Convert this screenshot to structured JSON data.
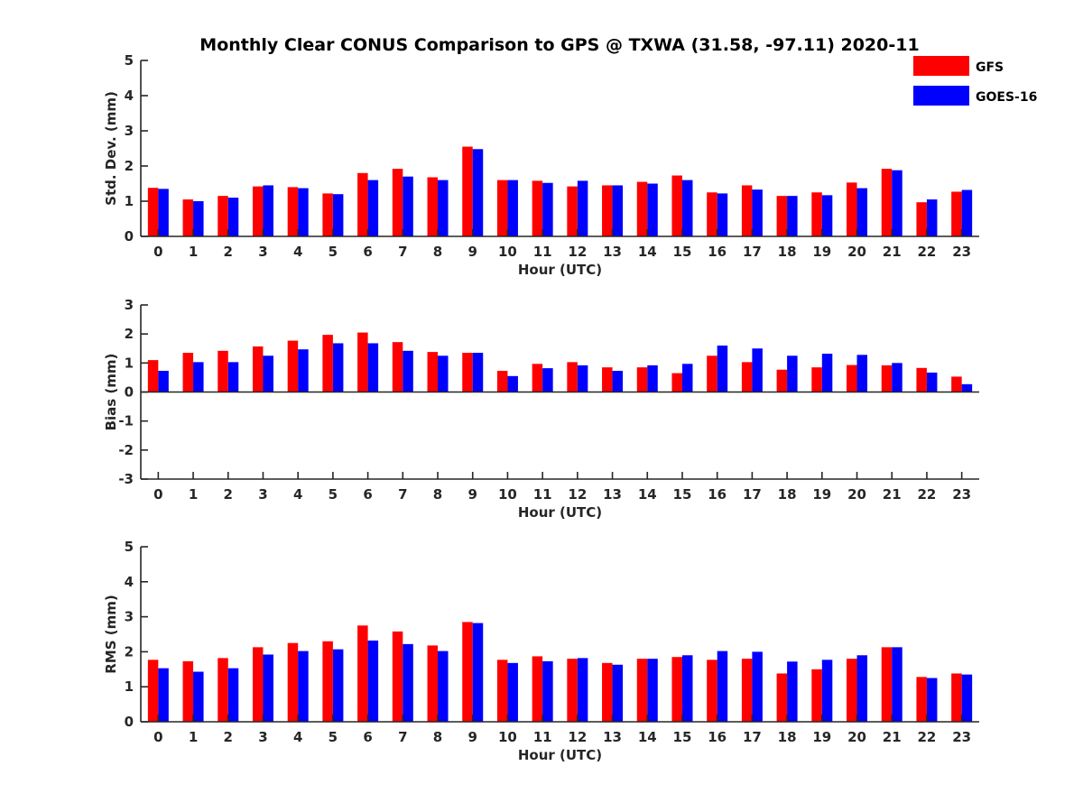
{
  "chart_data": {
    "type": "bar",
    "title": "Monthly Clear CONUS Comparison to GPS @ TXWA (31.58, -97.11) 2020-11",
    "legend": {
      "placement": "top-right",
      "entries": [
        {
          "name": "GFS",
          "color": "#ff0000"
        },
        {
          "name": "GOES-16",
          "color": "#0000ff"
        }
      ]
    },
    "categories": [
      "0",
      "1",
      "2",
      "3",
      "4",
      "5",
      "6",
      "7",
      "8",
      "9",
      "10",
      "11",
      "12",
      "13",
      "14",
      "15",
      "16",
      "17",
      "18",
      "19",
      "20",
      "21",
      "22",
      "23"
    ],
    "panels": [
      {
        "ylabel": "Std. Dev. (mm)",
        "xlabel": "Hour (UTC)",
        "ylim": [
          0,
          5
        ],
        "yticks": [
          "0",
          "1",
          "2",
          "3",
          "4",
          "5"
        ],
        "series": [
          {
            "name": "GFS",
            "color": "#ff0000",
            "values": [
              1.38,
              1.05,
              1.15,
              1.42,
              1.4,
              1.22,
              1.8,
              1.92,
              1.68,
              2.55,
              1.6,
              1.58,
              1.42,
              1.45,
              1.55,
              1.73,
              1.25,
              1.45,
              1.15,
              1.25,
              1.53,
              1.92,
              0.97,
              1.27
            ]
          },
          {
            "name": "GOES-16",
            "color": "#0000ff",
            "values": [
              1.35,
              1.0,
              1.1,
              1.45,
              1.37,
              1.2,
              1.6,
              1.7,
              1.6,
              2.48,
              1.6,
              1.52,
              1.58,
              1.45,
              1.5,
              1.6,
              1.22,
              1.33,
              1.15,
              1.17,
              1.37,
              1.88,
              1.05,
              1.32
            ]
          }
        ]
      },
      {
        "ylabel": "Bias (mm)",
        "xlabel": "Hour (UTC)",
        "ylim": [
          -3,
          3
        ],
        "yticks": [
          "-3",
          "-2",
          "-1",
          "0",
          "1",
          "2",
          "3"
        ],
        "series": [
          {
            "name": "GFS",
            "color": "#ff0000",
            "values": [
              1.1,
              1.35,
              1.42,
              1.57,
              1.77,
              1.97,
              2.05,
              1.72,
              1.38,
              1.35,
              0.73,
              0.97,
              1.03,
              0.85,
              0.85,
              0.65,
              1.25,
              1.03,
              0.77,
              0.85,
              0.93,
              0.92,
              0.83,
              0.53
            ]
          },
          {
            "name": "GOES-16",
            "color": "#0000ff",
            "values": [
              0.73,
              1.03,
              1.03,
              1.25,
              1.47,
              1.68,
              1.68,
              1.42,
              1.25,
              1.35,
              0.55,
              0.82,
              0.92,
              0.73,
              0.92,
              0.97,
              1.6,
              1.5,
              1.25,
              1.32,
              1.28,
              1.0,
              0.67,
              0.27
            ]
          }
        ]
      },
      {
        "ylabel": "RMS (mm)",
        "xlabel": "Hour (UTC)",
        "ylim": [
          0,
          5
        ],
        "yticks": [
          "0",
          "1",
          "2",
          "3",
          "4",
          "5"
        ],
        "series": [
          {
            "name": "GFS",
            "color": "#ff0000",
            "values": [
              1.77,
              1.73,
              1.82,
              2.13,
              2.25,
              2.3,
              2.75,
              2.58,
              2.18,
              2.85,
              1.77,
              1.87,
              1.8,
              1.68,
              1.8,
              1.85,
              1.77,
              1.8,
              1.38,
              1.5,
              1.8,
              2.13,
              1.28,
              1.38
            ]
          },
          {
            "name": "GOES-16",
            "color": "#0000ff",
            "values": [
              1.53,
              1.43,
              1.53,
              1.92,
              2.02,
              2.07,
              2.32,
              2.22,
              2.02,
              2.82,
              1.68,
              1.73,
              1.82,
              1.63,
              1.8,
              1.9,
              2.02,
              2.0,
              1.72,
              1.77,
              1.9,
              2.13,
              1.25,
              1.35
            ]
          }
        ]
      }
    ]
  }
}
